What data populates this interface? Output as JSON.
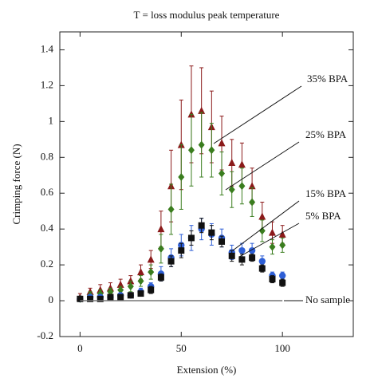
{
  "chart_data": {
    "type": "errorbar-scatter",
    "title": "T = loss modulus peak temperature",
    "x_label": "Extension (%)",
    "y_label": "Crimping force (N)",
    "xlim": [
      -10,
      135
    ],
    "ylim": [
      -0.2,
      1.5
    ],
    "xticks": [
      0,
      50,
      100
    ],
    "yticks": [
      -0.2,
      0,
      0.2,
      0.4,
      0.6,
      0.8,
      1,
      1.2,
      1.4
    ],
    "x": [
      0,
      5,
      10,
      15,
      20,
      25,
      30,
      35,
      40,
      45,
      50,
      55,
      60,
      65,
      70,
      75,
      80,
      85,
      90,
      95,
      100
    ],
    "series": [
      {
        "name": "35% BPA",
        "color": "#8b1a1a",
        "marker": "triangle",
        "values": [
          0.02,
          0.05,
          0.06,
          0.07,
          0.09,
          0.11,
          0.16,
          0.23,
          0.4,
          0.64,
          0.87,
          1.04,
          1.06,
          0.97,
          0.88,
          0.77,
          0.76,
          0.64,
          0.47,
          0.38,
          0.37
        ],
        "errors": [
          0.02,
          0.02,
          0.03,
          0.03,
          0.03,
          0.03,
          0.04,
          0.05,
          0.1,
          0.2,
          0.25,
          0.27,
          0.24,
          0.2,
          0.15,
          0.13,
          0.12,
          0.1,
          0.08,
          0.06,
          0.05
        ]
      },
      {
        "name": "25% BPA",
        "color": "#3a7d1e",
        "marker": "diamond",
        "values": [
          0.01,
          0.03,
          0.04,
          0.05,
          0.06,
          0.08,
          0.11,
          0.16,
          0.29,
          0.51,
          0.69,
          0.84,
          0.87,
          0.84,
          0.71,
          0.62,
          0.64,
          0.55,
          0.39,
          0.3,
          0.31
        ],
        "errors": [
          0.01,
          0.02,
          0.02,
          0.02,
          0.02,
          0.03,
          0.03,
          0.04,
          0.08,
          0.14,
          0.18,
          0.2,
          0.18,
          0.15,
          0.12,
          0.1,
          0.1,
          0.08,
          0.06,
          0.04,
          0.04
        ]
      },
      {
        "name": "15% BPA",
        "color": "#2e5fd6",
        "marker": "circle",
        "values": [
          0.01,
          0.02,
          0.02,
          0.02,
          0.03,
          0.03,
          0.05,
          0.08,
          0.15,
          0.24,
          0.31,
          0.35,
          0.4,
          0.37,
          0.35,
          0.27,
          0.28,
          0.28,
          0.22,
          0.14,
          0.14
        ],
        "errors": [
          0.01,
          0.01,
          0.01,
          0.01,
          0.01,
          0.01,
          0.02,
          0.02,
          0.04,
          0.05,
          0.06,
          0.07,
          0.06,
          0.06,
          0.05,
          0.04,
          0.04,
          0.04,
          0.03,
          0.02,
          0.02
        ]
      },
      {
        "name": "5% BPA",
        "color": "#111111",
        "marker": "square",
        "values": [
          0.01,
          0.01,
          0.01,
          0.02,
          0.02,
          0.03,
          0.04,
          0.06,
          0.13,
          0.22,
          0.28,
          0.35,
          0.42,
          0.38,
          0.33,
          0.25,
          0.23,
          0.24,
          0.18,
          0.12,
          0.1
        ],
        "errors": [
          0.01,
          0.01,
          0.01,
          0.01,
          0.01,
          0.01,
          0.01,
          0.02,
          0.02,
          0.03,
          0.04,
          0.04,
          0.04,
          0.04,
          0.03,
          0.03,
          0.03,
          0.02,
          0.02,
          0.02,
          0.02
        ]
      },
      {
        "name": "No sample",
        "color": "#777777",
        "marker": "line",
        "values": [
          0,
          0,
          0,
          0,
          0,
          0,
          0,
          0,
          0,
          0,
          0,
          0,
          0,
          0,
          0,
          0,
          0,
          0,
          0,
          0,
          0
        ]
      }
    ]
  }
}
